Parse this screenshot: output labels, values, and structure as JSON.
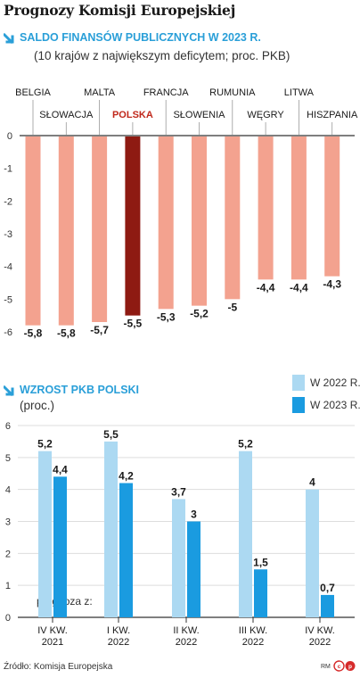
{
  "header": {
    "title": "Prognozy Komisji Europejskiej"
  },
  "chart1": {
    "title": "SALDO FINANSÓW PUBLICZNYCH W 2023 R.",
    "subtitle": "(10 krajów z największym deficytem; proc. PKB)"
  },
  "chart2": {
    "title": "WZROST PKB POLSKI",
    "subtitle": "(proc.)",
    "forecast_label": "prognoza z:"
  },
  "footer": {
    "source": "Źródło: Komisja Europejska",
    "author": "RM"
  },
  "colors": {
    "salmon": "#f3a28f",
    "poland": "#8e1a12",
    "poland_label": "#c0271a",
    "light_blue": "#acd9f2",
    "blue": "#1a9be0",
    "accent": "#2a9fd8"
  },
  "icons": {
    "section_marker": "arrow-down-right-icon",
    "license": "creative-commons-icon"
  },
  "chart_data": [
    {
      "type": "bar",
      "title": "SALDO FINANSÓW PUBLICZNYCH W 2023 R.",
      "subtitle": "(10 krajów z największym deficytem; proc. PKB)",
      "categories": [
        "BELGIA",
        "SŁOWACJA",
        "MALTA",
        "POLSKA",
        "FRANCJA",
        "SŁOWENIA",
        "RUMUNIA",
        "WĘGRY",
        "LITWA",
        "HISZPANIA"
      ],
      "values": [
        -5.8,
        -5.8,
        -5.7,
        -5.5,
        -5.3,
        -5.2,
        -5,
        -4.4,
        -4.4,
        -4.3
      ],
      "value_labels": [
        "-5,8",
        "-5,8",
        "-5,7",
        "-5,5",
        "-5,3",
        "-5,2",
        "-5",
        "-4,4",
        "-4,4",
        "-4,3"
      ],
      "highlight": "POLSKA",
      "ylim": [
        -6,
        0
      ],
      "yticks": [
        0,
        -1,
        -2,
        -3,
        -4,
        -5,
        -6
      ],
      "grid": false
    },
    {
      "type": "bar",
      "title": "WZROST PKB POLSKI",
      "subtitle": "(proc.)",
      "categories": [
        "IV KW. 2021",
        "I KW. 2022",
        "II KW. 2022",
        "III KW. 2022",
        "IV KW. 2022"
      ],
      "series": [
        {
          "name": "W 2022 R.",
          "values": [
            5.2,
            5.5,
            3.7,
            5.2,
            4
          ],
          "labels": [
            "5,2",
            "5,5",
            "3,7",
            "5,2",
            "4"
          ]
        },
        {
          "name": "W 2023 R.",
          "values": [
            4.4,
            4.2,
            3,
            1.5,
            0.7
          ],
          "labels": [
            "4,4",
            "4,2",
            "3",
            "1,5",
            "0,7"
          ]
        }
      ],
      "ylim": [
        0,
        6
      ],
      "yticks": [
        0,
        1,
        2,
        3,
        4,
        5,
        6
      ],
      "legend": "top-right",
      "grid": true
    }
  ]
}
